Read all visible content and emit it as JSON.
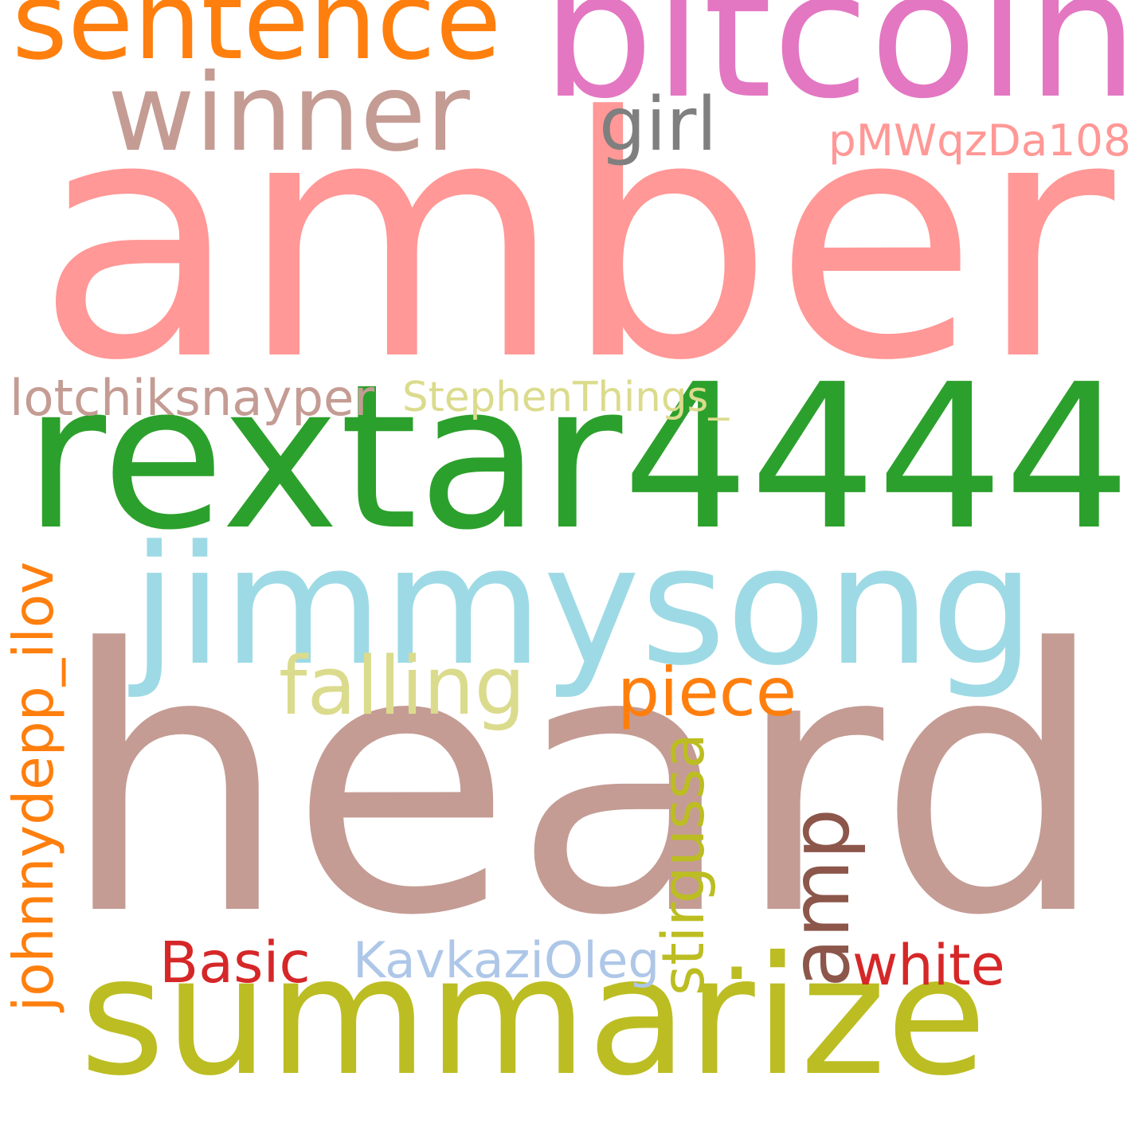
{
  "background": "#ffffff",
  "words": [
    {
      "id": "amber",
      "text": "amber",
      "color": "#ff9896",
      "weight": 1.0
    },
    {
      "id": "heard",
      "text": "heard",
      "color": "#c49c94",
      "weight": 0.98
    },
    {
      "id": "rextar4444",
      "text": "rextar4444",
      "color": "#2ca02c",
      "weight": 0.5
    },
    {
      "id": "jimmysong",
      "text": "jimmysong",
      "color": "#9edae5",
      "weight": 0.45
    },
    {
      "id": "summarize",
      "text": "summarize",
      "color": "#bcbd22",
      "weight": 0.42
    },
    {
      "id": "bitcoin",
      "text": "bitcoin",
      "color": "#e377c2",
      "weight": 0.4
    },
    {
      "id": "winner",
      "text": "winner",
      "color": "#c49c94",
      "weight": 0.28
    },
    {
      "id": "sentence",
      "text": "sentence",
      "color": "#ff7f0e",
      "weight": 0.28
    },
    {
      "id": "amp",
      "text": "amp",
      "color": "#8c564b",
      "weight": 0.2
    },
    {
      "id": "johnnydepp_ilov",
      "text": "johnnydepp_ilov",
      "color": "#ff7f0e",
      "weight": 0.12
    },
    {
      "id": "falling",
      "text": "falling",
      "color": "#dbdb8d",
      "weight": 0.12
    },
    {
      "id": "piece",
      "text": "piece",
      "color": "#ff7f0e",
      "weight": 0.12
    },
    {
      "id": "stirgussa",
      "text": "stirgussa",
      "color": "#bcbd22",
      "weight": 0.1
    },
    {
      "id": "pMWqzDa108",
      "text": "pMWqzDa108",
      "color": "#ff9896",
      "weight": 0.1
    },
    {
      "id": "lotchiksnayper",
      "text": "lotchiksnayper",
      "color": "#c49c94",
      "weight": 0.09
    },
    {
      "id": "StephenThings_",
      "text": "StephenThings_",
      "color": "#dbdb8d",
      "weight": 0.09
    },
    {
      "id": "girl",
      "text": "girl",
      "color": "#7f7f7f",
      "weight": 0.09
    },
    {
      "id": "Basic",
      "text": "Basic",
      "color": "#d62728",
      "weight": 0.09
    },
    {
      "id": "KavkaziOleg",
      "text": "KavkaziOleg",
      "color": "#aec7e8",
      "weight": 0.09
    },
    {
      "id": "white",
      "text": "white",
      "color": "#d62728",
      "weight": 0.09
    },
    {
      "id": "dot",
      "text": ".",
      "color": "#bcbd22",
      "weight": 0.09
    }
  ]
}
